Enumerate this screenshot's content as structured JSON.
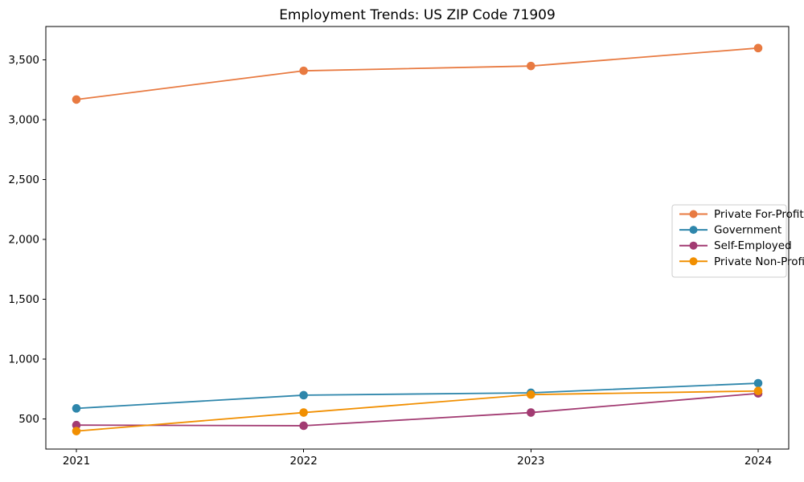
{
  "chart_data": {
    "type": "line",
    "title": "Employment Trends: US ZIP Code 71909",
    "xlabel": "",
    "ylabel": "",
    "categories": [
      "2021",
      "2022",
      "2023",
      "2024"
    ],
    "series": [
      {
        "name": "Private For-Profit",
        "color": "#e87a41",
        "values": [
          3170,
          3410,
          3450,
          3600
        ]
      },
      {
        "name": "Government",
        "color": "#2e86ab",
        "values": [
          590,
          700,
          720,
          800
        ]
      },
      {
        "name": "Self-Employed",
        "color": "#a23b72",
        "values": [
          450,
          445,
          555,
          715
        ]
      },
      {
        "name": "Private Non-Profit",
        "color": "#f18f01",
        "values": [
          400,
          555,
          705,
          735
        ]
      }
    ],
    "ylim": [
      250,
      3780
    ],
    "yticks": [
      500,
      1000,
      1500,
      2000,
      2500,
      3000,
      3500
    ],
    "ytick_labels": [
      "500",
      "1,000",
      "1,500",
      "2,000",
      "2,500",
      "3,000",
      "3,500"
    ],
    "grid": false,
    "legend_position": "center-right",
    "background_color": "#ffffff",
    "axis_color": "#000000",
    "legend_border_color": "#cccccc"
  }
}
